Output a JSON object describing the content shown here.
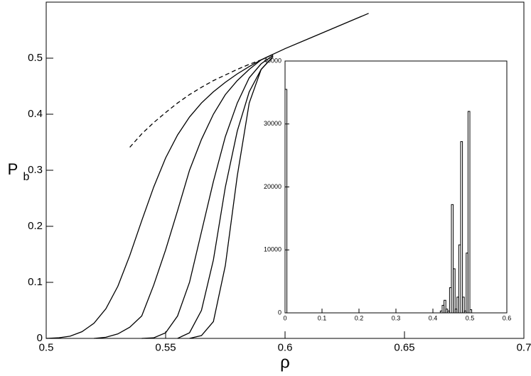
{
  "chart_data": [
    {
      "type": "line",
      "xlabel": "ρ",
      "ylabel": "P",
      "ylabel_subscript": "b",
      "x": [
        0.5,
        0.505,
        0.51,
        0.515,
        0.52,
        0.525,
        0.53,
        0.535,
        0.54,
        0.545,
        0.55,
        0.555,
        0.56,
        0.565,
        0.57,
        0.575,
        0.58,
        0.585,
        0.59,
        0.595,
        0.6,
        0.61,
        0.62,
        0.63,
        0.635
      ],
      "series": [
        {
          "color": "#000000",
          "dash": false,
          "values": [
            0,
            0.001,
            0.004,
            0.012,
            0.027,
            0.053,
            0.093,
            0.148,
            0.21,
            0.27,
            0.322,
            0.363,
            0.395,
            0.42,
            0.44,
            0.457,
            0.472,
            0.485,
            0.497,
            0.507,
            0.517,
            0.535,
            0.553,
            0.571,
            0.58
          ]
        },
        {
          "color": "#000000",
          "dash": false,
          "values": [
            null,
            null,
            null,
            null,
            0,
            0.002,
            0.008,
            0.02,
            0.04,
            0.095,
            0.158,
            0.228,
            0.3,
            0.355,
            0.4,
            0.435,
            0.46,
            0.48,
            0.497,
            0.507,
            null,
            null,
            null,
            null,
            null
          ]
        },
        {
          "color": "#000000",
          "dash": false,
          "values": [
            null,
            null,
            null,
            null,
            null,
            null,
            null,
            null,
            0,
            0.001,
            0.01,
            0.04,
            0.1,
            0.19,
            0.28,
            0.36,
            0.42,
            0.465,
            0.49,
            0.505,
            null,
            null,
            null,
            null,
            null
          ]
        },
        {
          "color": "#000000",
          "dash": false,
          "values": [
            null,
            null,
            null,
            null,
            null,
            null,
            null,
            null,
            null,
            null,
            null,
            0,
            0.01,
            0.05,
            0.14,
            0.27,
            0.37,
            0.44,
            0.48,
            0.503,
            null,
            null,
            null,
            null,
            null
          ]
        },
        {
          "color": "#000000",
          "dash": false,
          "values": [
            null,
            null,
            null,
            null,
            null,
            null,
            null,
            null,
            null,
            null,
            null,
            null,
            0,
            0.005,
            0.03,
            0.13,
            0.29,
            0.42,
            0.48,
            0.503,
            null,
            null,
            null,
            null,
            null
          ]
        },
        {
          "color": "#000000",
          "dash": true,
          "values": [
            null,
            null,
            null,
            null,
            null,
            null,
            null,
            0.341,
            0.365,
            0.385,
            0.403,
            0.42,
            0.435,
            0.448,
            0.46,
            0.47,
            0.48,
            0.489,
            0.497,
            null,
            null,
            null,
            null,
            null,
            null
          ]
        }
      ],
      "xlim": [
        0.5,
        0.7
      ],
      "xticks": [
        0.5,
        0.55,
        0.6,
        0.65,
        0.7
      ],
      "ylim": [
        0,
        0.6
      ],
      "yticks": [
        0,
        0.1,
        0.2,
        0.3,
        0.4,
        0.5
      ]
    },
    {
      "type": "histogram",
      "color": "#000000",
      "bins": [
        0,
        0.005,
        0.42,
        0.425,
        0.43,
        0.435,
        0.44,
        0.445,
        0.45,
        0.455,
        0.46,
        0.465,
        0.47,
        0.475,
        0.48,
        0.485,
        0.49,
        0.495,
        0.5,
        0.505,
        0.51
      ],
      "values": [
        35500,
        0,
        300,
        1200,
        2000,
        600,
        300,
        4000,
        17200,
        7000,
        600,
        2500,
        10800,
        27200,
        2500,
        300,
        9500,
        32000,
        500,
        0
      ],
      "xlim": [
        0,
        0.6
      ],
      "xticks": [
        0,
        0.1,
        0.2,
        0.3,
        0.4,
        0.5,
        0.6
      ],
      "ylim": [
        0,
        40000
      ],
      "yticks": [
        0,
        10000,
        20000,
        30000,
        40000
      ]
    }
  ]
}
